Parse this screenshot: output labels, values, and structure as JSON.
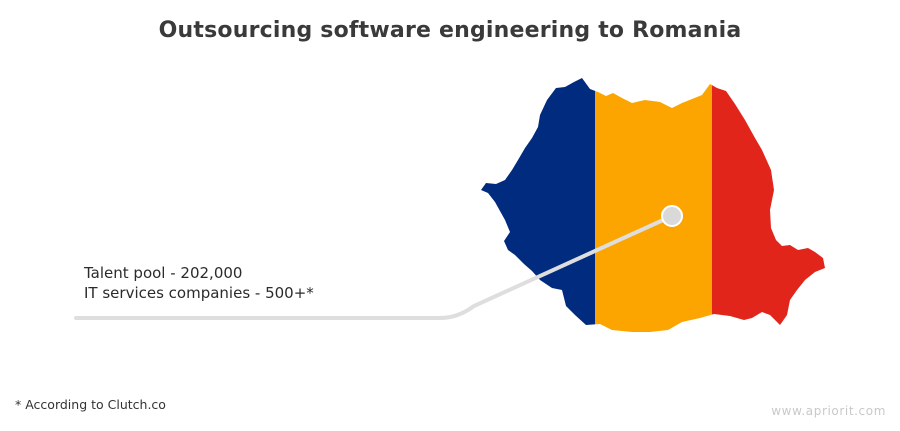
{
  "title": "Outsourcing software engineering to Romania",
  "stats": [
    "Talent pool - 202,000",
    "IT services companies - 500+*"
  ],
  "footnote": "* According to Clutch.co",
  "watermark": "www.apriorit.com",
  "flag_colors": {
    "blue": "#002b7f",
    "yellow": "#fca500",
    "red": "#e1251b"
  },
  "marker_color": "#d9d9d9",
  "line_color": "#dedede"
}
